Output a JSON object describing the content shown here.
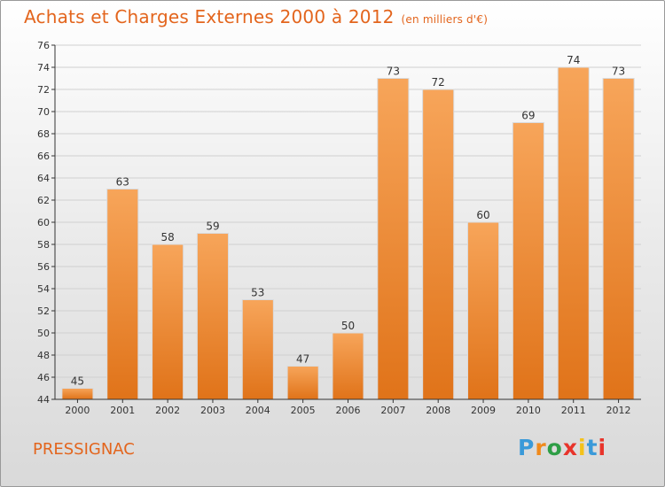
{
  "header": {
    "title": "Achats et Charges Externes 2000 à 2012",
    "subtitle": "(en milliers d'€)"
  },
  "footer": {
    "commune": "PRESSIGNAC",
    "logo_letters": [
      "P",
      "r",
      "o",
      "x",
      "i",
      "t",
      "i"
    ],
    "logo_colors": [
      "#3a9ad9",
      "#f08a1c",
      "#2e9e46",
      "#e8342b",
      "#f4c21a",
      "#3a9ad9",
      "#e8342b"
    ]
  },
  "colors": {
    "bar_top": "#f7a55a",
    "bar_bottom": "#e07319",
    "accent": "#e3651d",
    "axis": "#333333",
    "grid": "#d0d0d0"
  },
  "chart_data": {
    "type": "bar",
    "title": "Achats et Charges Externes 2000 à 2012",
    "subtitle": "(en milliers d'€)",
    "xlabel": "",
    "ylabel": "",
    "categories": [
      "2000",
      "2001",
      "2002",
      "2003",
      "2004",
      "2005",
      "2006",
      "2007",
      "2008",
      "2009",
      "2010",
      "2011",
      "2012"
    ],
    "values": [
      45,
      63,
      58,
      59,
      53,
      47,
      50,
      73,
      72,
      60,
      69,
      74,
      73
    ],
    "ylim": [
      44,
      76
    ],
    "yticks": [
      44,
      46,
      48,
      50,
      52,
      54,
      56,
      58,
      60,
      62,
      64,
      66,
      68,
      70,
      72,
      74,
      76
    ],
    "grid": true
  }
}
